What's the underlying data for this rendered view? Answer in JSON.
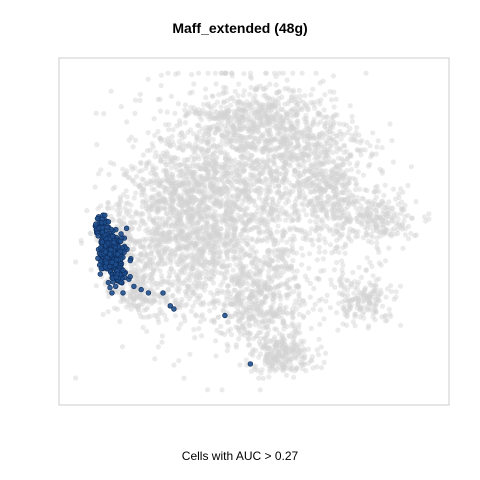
{
  "chart_data": {
    "type": "scatter",
    "title": "Maff_extended (48g)",
    "caption": "Cells with AUC > 0.27",
    "xlabel": "",
    "ylabel": "",
    "grid": false,
    "axes_ticks": false,
    "colors": {
      "background_points": "#d3d3d3",
      "highlight_points": "#1f4e8c",
      "highlight_edge": "#0d2c5a",
      "frame": "#cccccc"
    },
    "xlim": [
      0,
      100
    ],
    "ylim": [
      0,
      100
    ],
    "clusters": [
      {
        "cx": 44,
        "cy": 57,
        "rx": 25,
        "ry": 34,
        "n": 1700
      },
      {
        "cx": 62,
        "cy": 74,
        "rx": 18,
        "ry": 17,
        "n": 700
      },
      {
        "cx": 30,
        "cy": 63,
        "rx": 13,
        "ry": 15,
        "n": 450
      },
      {
        "cx": 27,
        "cy": 44,
        "rx": 16,
        "ry": 12,
        "n": 420
      },
      {
        "cx": 52,
        "cy": 28,
        "rx": 13,
        "ry": 11,
        "n": 380
      },
      {
        "cx": 58,
        "cy": 12,
        "rx": 8,
        "ry": 5,
        "n": 220
      },
      {
        "cx": 80,
        "cy": 29,
        "rx": 8,
        "ry": 7,
        "n": 180
      },
      {
        "cx": 84,
        "cy": 54,
        "rx": 10,
        "ry": 7,
        "n": 220
      },
      {
        "cx": 12,
        "cy": 47,
        "rx": 5,
        "ry": 12,
        "n": 160
      },
      {
        "cx": 20,
        "cy": 30,
        "rx": 9,
        "ry": 6,
        "n": 150
      },
      {
        "cx": 72,
        "cy": 58,
        "rx": 6,
        "ry": 13,
        "n": 200
      },
      {
        "cx": 48,
        "cy": 86,
        "rx": 14,
        "ry": 7,
        "n": 260
      }
    ],
    "highlight_clusters": [
      {
        "cx": 11,
        "cy": 43,
        "rx": 3.5,
        "ry": 7,
        "n": 230
      },
      {
        "cx": 8,
        "cy": 52,
        "rx": 2,
        "ry": 4,
        "n": 40
      },
      {
        "cx": 13,
        "cy": 36,
        "rx": 3,
        "ry": 2,
        "n": 30
      }
    ],
    "highlight_points": [
      {
        "x": 7,
        "y": 54
      },
      {
        "x": 9,
        "y": 55
      },
      {
        "x": 10,
        "y": 53
      },
      {
        "x": 15,
        "y": 51
      },
      {
        "x": 16,
        "y": 41
      },
      {
        "x": 14,
        "y": 38
      },
      {
        "x": 17,
        "y": 33
      },
      {
        "x": 19,
        "y": 32
      },
      {
        "x": 21,
        "y": 31
      },
      {
        "x": 25,
        "y": 31
      },
      {
        "x": 27,
        "y": 27
      },
      {
        "x": 28,
        "y": 26
      },
      {
        "x": 42,
        "y": 24
      },
      {
        "x": 49,
        "y": 9
      },
      {
        "x": 12,
        "y": 33
      },
      {
        "x": 14,
        "y": 31
      },
      {
        "x": 11,
        "y": 31
      },
      {
        "x": 16,
        "y": 36
      }
    ]
  }
}
